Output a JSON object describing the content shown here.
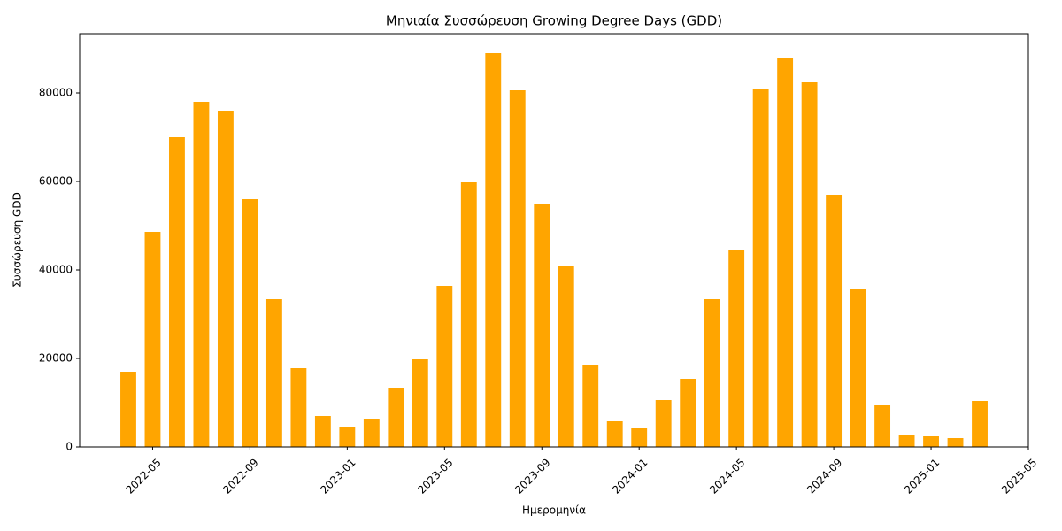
{
  "chart_data": {
    "type": "bar",
    "title": "Μηνιαία Συσσώρευση Growing Degree Days (GDD)",
    "xlabel": "Ημερομηνία",
    "ylabel": "Συσσώρευση GDD",
    "x": [
      "2022-04",
      "2022-05",
      "2022-06",
      "2022-07",
      "2022-08",
      "2022-09",
      "2022-10",
      "2022-11",
      "2022-12",
      "2023-01",
      "2023-02",
      "2023-03",
      "2023-04",
      "2023-05",
      "2023-06",
      "2023-07",
      "2023-08",
      "2023-09",
      "2023-10",
      "2023-11",
      "2023-12",
      "2024-01",
      "2024-02",
      "2024-03",
      "2024-04",
      "2024-05",
      "2024-06",
      "2024-07",
      "2024-08",
      "2024-09",
      "2024-10",
      "2024-11",
      "2024-12",
      "2025-01",
      "2025-02",
      "2025-03"
    ],
    "values": [
      17000,
      48600,
      70000,
      78000,
      76000,
      56000,
      33400,
      17800,
      7000,
      4400,
      6200,
      13400,
      19800,
      36400,
      59800,
      89000,
      80600,
      54800,
      41000,
      18600,
      5800,
      4200,
      10600,
      15400,
      33400,
      44400,
      80800,
      88000,
      82400,
      57000,
      35800,
      9400,
      2800,
      2400,
      2000,
      10400
    ],
    "color": "#ffa500",
    "xlim": [
      "2022-02",
      "2025-05"
    ],
    "xticks": [
      "2022-05",
      "2022-09",
      "2023-01",
      "2023-05",
      "2023-09",
      "2024-01",
      "2024-05",
      "2024-09",
      "2025-01",
      "2025-05"
    ],
    "ylim": [
      0,
      93400
    ],
    "yticks": [
      0,
      20000,
      40000,
      60000,
      80000
    ],
    "grid": false
  }
}
